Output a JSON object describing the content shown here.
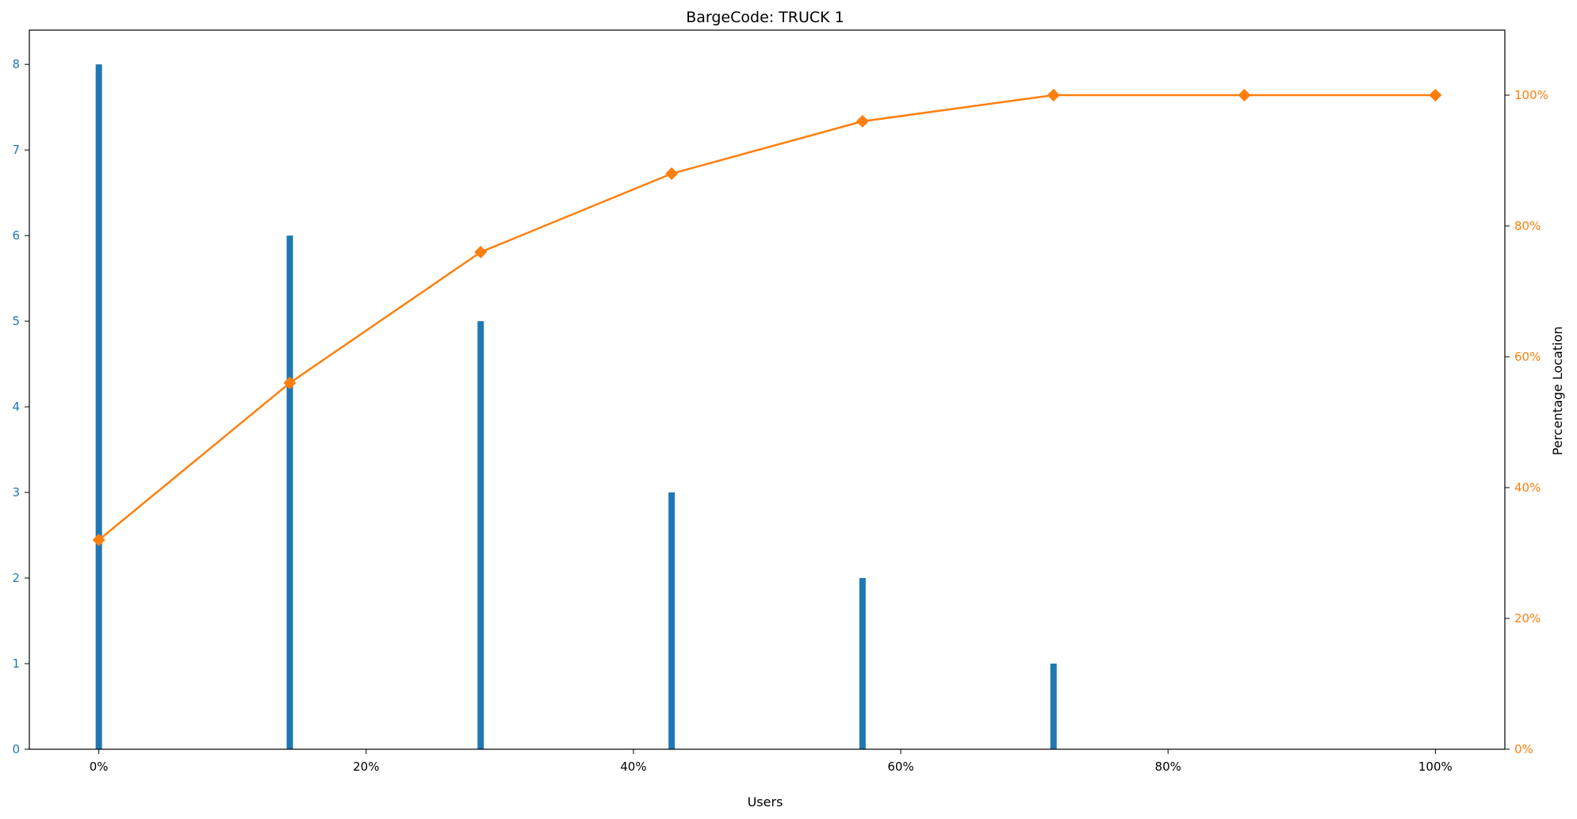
{
  "chart_data": {
    "type": "bar",
    "title": "BargeCode: TRUCK 1",
    "xlabel": "Users",
    "ylabel": "",
    "y2label": "Percentage Location",
    "x_ticks": [
      "0%",
      "20%",
      "40%",
      "60%",
      "80%",
      "100%"
    ],
    "x_tick_values": [
      0,
      20,
      40,
      60,
      80,
      100
    ],
    "xlim": [
      -5.2,
      105.2
    ],
    "ylim": [
      0,
      8.4
    ],
    "y_ticks": [
      0,
      1,
      2,
      3,
      4,
      5,
      6,
      7,
      8
    ],
    "y2lim": [
      0,
      100
    ],
    "y2_ticks": [
      "0%",
      "20%",
      "40%",
      "60%",
      "80%",
      "100%"
    ],
    "y2_tick_values": [
      0,
      20,
      40,
      60,
      80,
      100
    ],
    "grid": false,
    "legend": "none",
    "series": [
      {
        "type": "bar",
        "axis": "left",
        "color": "#1f77b4",
        "x": [
          0,
          14.29,
          28.57,
          42.86,
          57.14,
          71.43
        ],
        "values": [
          8,
          6,
          5,
          3,
          2,
          1
        ]
      },
      {
        "type": "line",
        "axis": "right",
        "marker": "diamond",
        "color": "#ff7f0e",
        "x": [
          0,
          14.29,
          28.57,
          42.86,
          57.14,
          71.43,
          85.71,
          100
        ],
        "values": [
          32,
          56,
          76,
          88,
          96,
          100,
          100,
          100
        ]
      }
    ],
    "left_tick_color": "#1f77b4",
    "right_tick_color": "#ff7f0e",
    "bottom_tick_color": "#000000"
  }
}
